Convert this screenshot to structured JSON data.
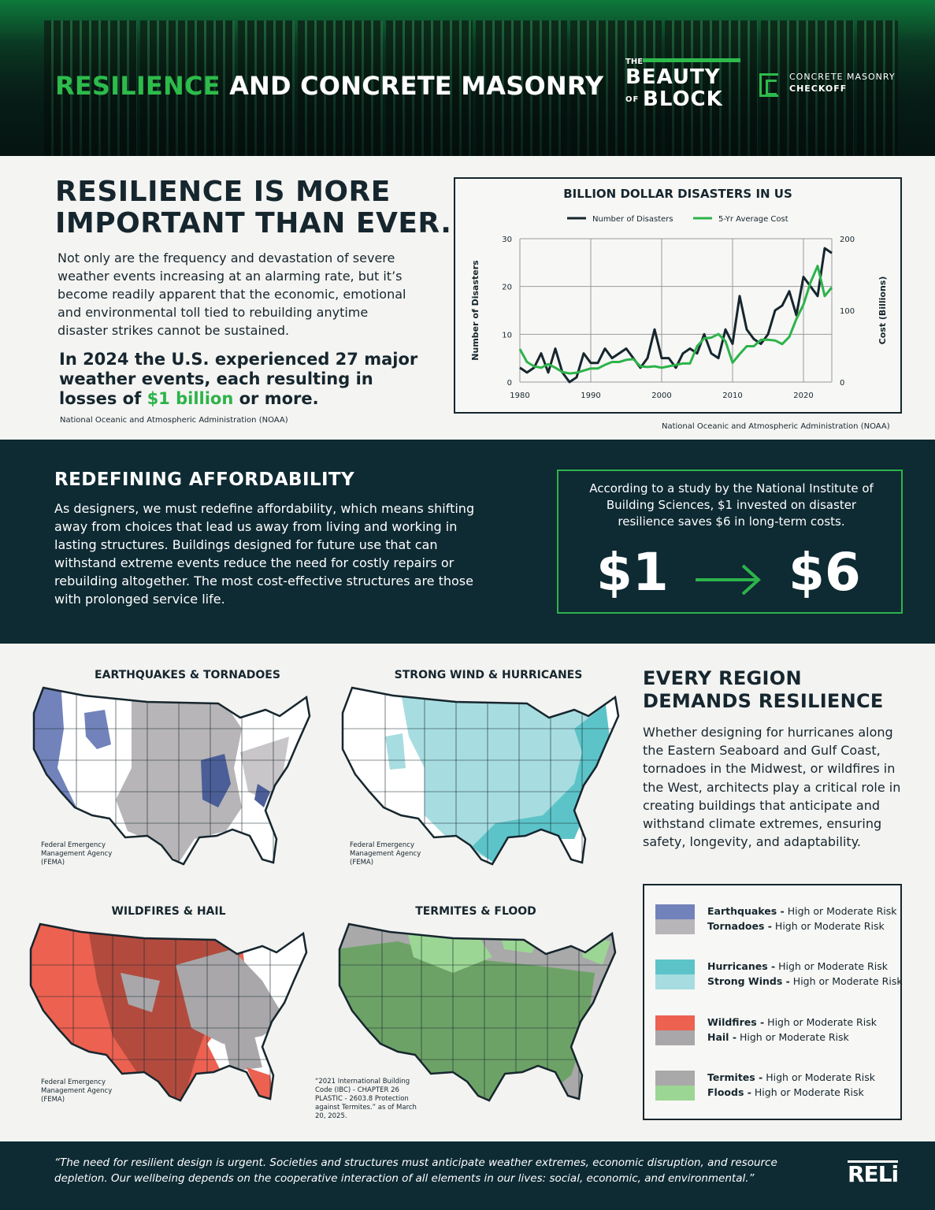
{
  "header": {
    "title_accent": "RESILIENCE",
    "title_rest": " AND CONCRETE MASONRY",
    "bob_the": "THE",
    "bob_line1": "BEAUTY",
    "bob_of": "OF",
    "bob_line2": "BLOCK",
    "cmc_line1": "CONCRETE MASONRY",
    "cmc_line2": "CHECKOFF"
  },
  "intro": {
    "heading_line1": "RESILIENCE IS MORE",
    "heading_line2": "IMPORTANT THAN EVER.",
    "body": "Not only are the frequency and devastation of severe weather events increasing at an alarming rate, but it’s become readily apparent that the economic, emotional and environmental toll tied to rebuilding anytime disaster strikes cannot be sustained.",
    "stat_pre": "In 2024 the U.S. experienced 27 major weather events, each resulting in losses of ",
    "stat_highlight": "$1 billion",
    "stat_post": " or more.",
    "source": "National Oceanic and Atmospheric Administration (NOAA)"
  },
  "chart_data": {
    "type": "line",
    "title": "BILLION DOLLAR DISASTERS IN US",
    "xlabel": "",
    "ylabel": "Number of Disasters",
    "ylabel_right": "Cost (Billions)",
    "x_ticks": [
      "1980",
      "1990",
      "2000",
      "2010",
      "2020"
    ],
    "y_ticks": [
      "0",
      "10",
      "20",
      "30"
    ],
    "y_right_ticks": [
      "0",
      "100",
      "200"
    ],
    "ylim": [
      0,
      30
    ],
    "ylim_right": [
      0,
      200
    ],
    "xlim": [
      1980,
      2024
    ],
    "legend_position": "top-center",
    "grid": true,
    "source": "National Oceanic and Atmospheric Administration (NOAA)",
    "x": [
      1980,
      1981,
      1982,
      1983,
      1984,
      1985,
      1986,
      1987,
      1988,
      1989,
      1990,
      1991,
      1992,
      1993,
      1994,
      1995,
      1996,
      1997,
      1998,
      1999,
      2000,
      2001,
      2002,
      2003,
      2004,
      2005,
      2006,
      2007,
      2008,
      2009,
      2010,
      2011,
      2012,
      2013,
      2014,
      2015,
      2016,
      2017,
      2018,
      2019,
      2020,
      2021,
      2022,
      2023,
      2024
    ],
    "series": [
      {
        "name": "Number of Disasters",
        "axis": "left",
        "color": "#16262e",
        "values": [
          3,
          2,
          3,
          6,
          2,
          7,
          2,
          0,
          1,
          6,
          4,
          4,
          7,
          5,
          6,
          7,
          5,
          3,
          5,
          11,
          5,
          5,
          3,
          6,
          7,
          6,
          10,
          6,
          5,
          11,
          8,
          18,
          11,
          9,
          8,
          10,
          15,
          16,
          19,
          14,
          22,
          20,
          18,
          28,
          27
        ]
      },
      {
        "name": "5-Yr Average Cost",
        "axis": "right",
        "color": "#2db34a",
        "values": [
          46,
          28,
          22,
          20,
          25,
          20,
          14,
          12,
          13,
          16,
          19,
          19,
          24,
          28,
          28,
          31,
          32,
          22,
          21,
          22,
          20,
          22,
          24,
          26,
          26,
          50,
          61,
          62,
          67,
          57,
          27,
          39,
          50,
          50,
          59,
          59,
          58,
          53,
          63,
          88,
          108,
          139,
          162,
          120,
          132
        ]
      }
    ]
  },
  "affordability": {
    "heading": "REDEFINING AFFORDABILITY",
    "body": "As designers, we must redefine affordability, which means shifting away from choices that lead us away from living and working in lasting structures. Buildings designed for future use that can withstand extreme events reduce the need for costly repairs or rebuilding altogether. The most cost-effective structures are those with prolonged service life.",
    "study": "According to a study by the National Institute of Building Sciences, $1 invested on disaster resilience saves $6 in long-term costs.",
    "from_value": "$1",
    "to_value": "$6",
    "arrow_icon": "arrow-right-icon",
    "accent_color": "#2db34a"
  },
  "maps": {
    "map1_title": "EARTHQUAKES & TORNADOES",
    "map2_title": "STRONG WIND & HURRICANES",
    "map3_title": "WILDFIRES & HAIL",
    "map4_title": "TERMITES & FLOOD",
    "fema_source": "Federal Emergency Management Agency (FEMA)",
    "ibc_source": "“2021 International Building Code (IBC) - CHAPTER 26 PLASTIC - 2603.8 Protection against Termites.” as of March 20, 2025."
  },
  "region": {
    "heading_line1": "EVERY REGION",
    "heading_line2": "DEMANDS RESILIENCE",
    "body": "Whether designing for hurricanes along the Eastern Seaboard and Gulf Coast, tornadoes in the Midwest, or wildfires in the West, architects play a critical role in creating buildings that anticipate and withstand climate extremes, ensuring safety, longevity, and adaptability."
  },
  "legend": [
    {
      "a_name": "Earthquakes -",
      "a_desc": " High or Moderate Risk",
      "a_color": "#7283bb",
      "b_name": "Tornadoes -",
      "b_desc": " High or Moderate Risk",
      "b_color": "#b7b5b7"
    },
    {
      "a_name": "Hurricanes -",
      "a_desc": " High or Moderate Risk",
      "a_color": "#5cc4c9",
      "b_name": "Strong Winds -",
      "b_desc": " High or Moderate Risk",
      "b_color": "#a7dde0"
    },
    {
      "a_name": "Wildfires -",
      "a_desc": " High or Moderate Risk",
      "a_color": "#ec6150",
      "b_name": "Hail -",
      "b_desc": " High or Moderate Risk",
      "b_color": "#a9a7a9"
    },
    {
      "a_name": "Termites -",
      "a_desc": " High or Moderate Risk",
      "a_color": "#a9a9a9",
      "b_name": "Floods -",
      "b_desc": " High or Moderate Risk",
      "b_color": "#9cd694"
    }
  ],
  "footer": {
    "quote": "“The need for resilient design is urgent. Societies and structures must anticipate weather extremes, economic disruption, and resource depletion. Our wellbeing depends on the cooperative interaction of all elements in our lives: social, economic, and environmental.”",
    "logo": "RELi"
  }
}
